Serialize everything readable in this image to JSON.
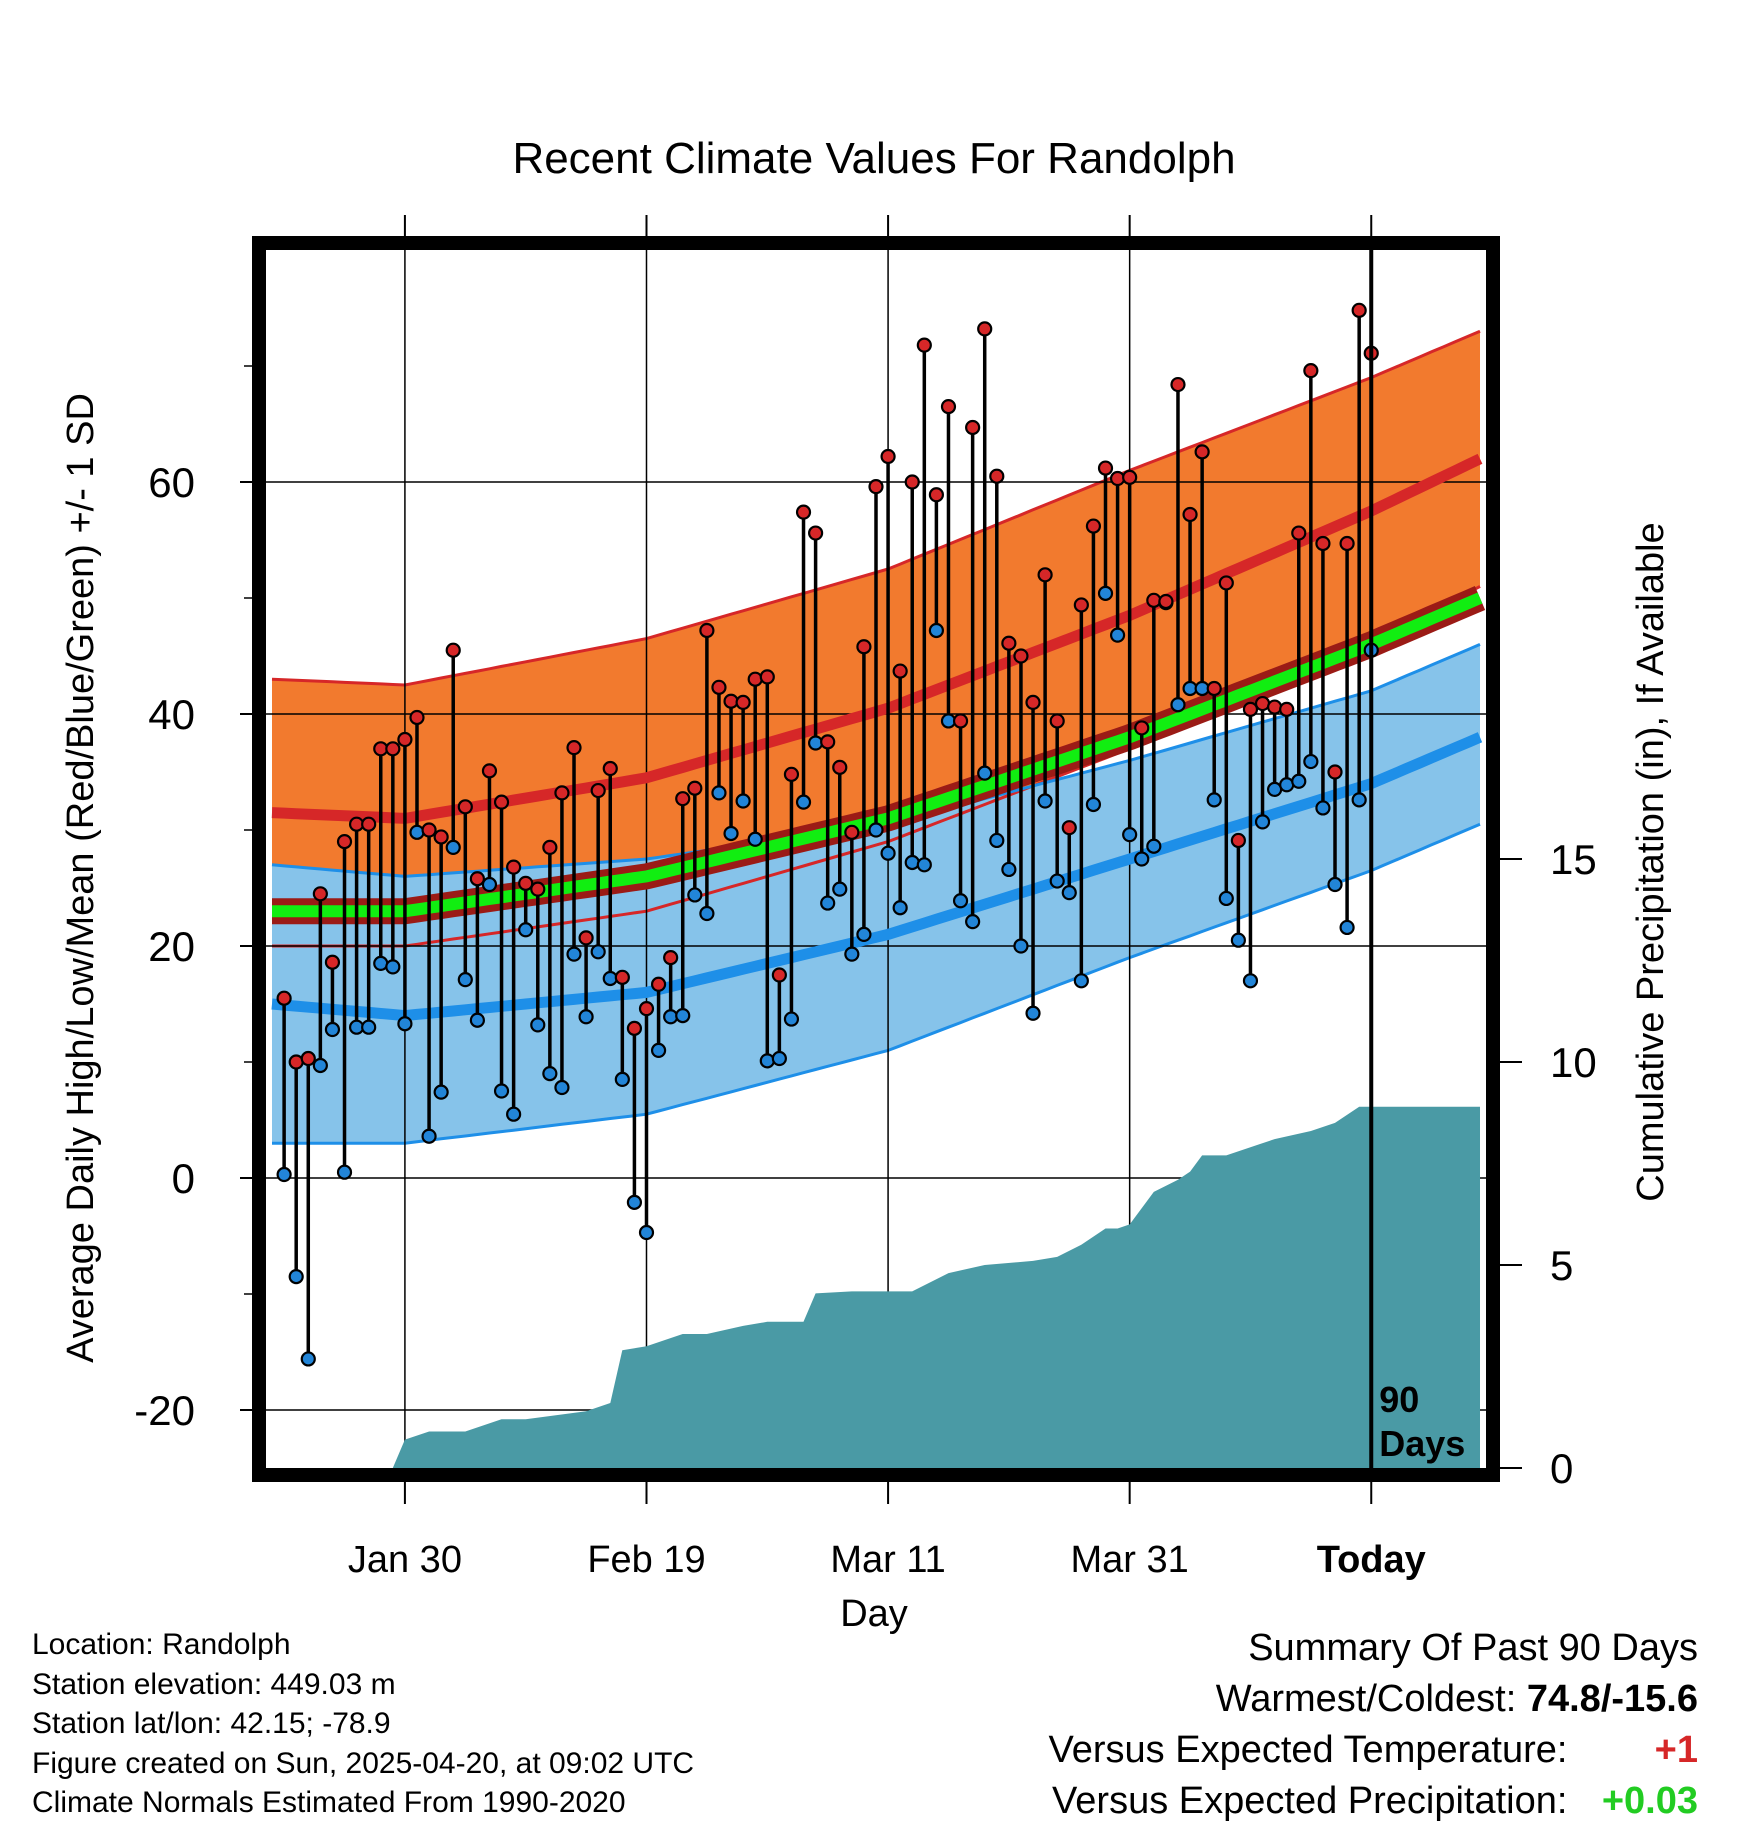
{
  "chart_data": {
    "type": "line",
    "title": "Recent Climate Values For Randolph",
    "xlabel": "Day",
    "ylabel": "Average Daily High/Low/Mean (Red/Blue/Green) +/- 1 SD",
    "y2label": "Cumulative Precipitation (in), If Available",
    "x_ticks": [
      "Jan 30",
      "Feb 19",
      "Mar 11",
      "Mar 31",
      "Today"
    ],
    "x_tick_days": [
      -80,
      -60,
      -40,
      -20,
      0
    ],
    "xlim_days": [
      -91.5,
      9.5
    ],
    "ylim": [
      -25,
      80
    ],
    "y_ticks": [
      -20,
      0,
      20,
      40,
      60
    ],
    "y2lim": [
      0,
      30
    ],
    "y2_ticks": [
      0,
      5,
      10,
      15
    ],
    "grid": true,
    "today_annotation": "90\nDays",
    "normals": {
      "day": [
        -91,
        -80,
        -60,
        -40,
        -20,
        0,
        9
      ],
      "high_mean": [
        31.5,
        31.0,
        34.5,
        40.5,
        48.5,
        57.5,
        62.0
      ],
      "high_upper": [
        43.0,
        42.5,
        46.5,
        52.5,
        61.0,
        69.0,
        73.0
      ],
      "high_lower": [
        20.0,
        20.0,
        23.0,
        29.0,
        37.0,
        46.0,
        51.0
      ],
      "low_mean": [
        15.0,
        14.0,
        16.0,
        21.0,
        27.5,
        34.0,
        38.0
      ],
      "low_upper": [
        27.0,
        26.0,
        27.5,
        30.5,
        36.0,
        42.0,
        46.0
      ],
      "low_lower": [
        3.0,
        3.0,
        5.5,
        11.0,
        19.0,
        26.5,
        30.5
      ],
      "mean": [
        23.0,
        23.0,
        26.0,
        31.0,
        38.0,
        46.0,
        50.0
      ]
    },
    "series": [
      {
        "name": "High",
        "values": [
          15.5,
          10.0,
          10.3,
          24.5,
          18.6,
          29.0,
          30.5,
          30.5,
          37.0,
          37.0,
          37.8,
          39.7,
          30.0,
          29.4,
          45.5,
          32.0,
          25.8,
          35.1,
          32.4,
          26.8,
          25.4,
          24.9,
          28.5,
          33.2,
          37.1,
          20.7,
          33.4,
          35.3,
          17.3,
          12.9,
          14.6,
          16.7,
          19.0,
          32.7,
          33.6,
          47.2,
          42.3,
          41.1,
          41.0,
          43.0,
          43.2,
          17.5,
          34.8,
          57.4,
          55.6,
          37.6,
          35.4,
          29.8,
          45.8,
          59.6,
          62.2,
          43.7,
          60.0,
          71.8,
          58.9,
          66.5,
          39.4,
          64.7,
          73.2,
          60.5,
          46.1,
          45.0,
          41.0,
          52.0,
          39.4,
          30.2,
          49.4,
          56.2,
          61.2,
          60.3,
          60.4,
          38.8,
          49.8,
          49.7,
          68.4,
          57.2,
          62.6,
          42.2,
          51.3,
          29.1,
          40.4,
          40.9,
          40.6,
          40.4,
          55.6,
          69.6,
          54.7,
          35.0,
          54.7,
          74.8,
          71.1
        ],
        "color": "#d62728"
      },
      {
        "name": "Low",
        "values": [
          0.3,
          -8.5,
          -15.6,
          9.7,
          12.8,
          0.5,
          13.0,
          13.0,
          18.5,
          18.2,
          13.3,
          29.8,
          3.6,
          7.4,
          28.5,
          17.1,
          13.6,
          25.3,
          7.5,
          5.5,
          21.4,
          13.2,
          9.0,
          7.8,
          19.3,
          13.9,
          19.5,
          17.2,
          8.5,
          -2.1,
          -4.7,
          11.0,
          13.9,
          14.0,
          24.4,
          22.8,
          33.2,
          29.7,
          32.5,
          29.2,
          10.1,
          10.3,
          13.7,
          32.4,
          37.5,
          23.7,
          24.9,
          19.3,
          21.0,
          30.0,
          28.0,
          23.3,
          27.2,
          27.0,
          47.2,
          39.4,
          23.9,
          22.1,
          34.9,
          29.1,
          26.6,
          20.0,
          14.2,
          32.5,
          25.6,
          24.6,
          17.0,
          32.2,
          50.4,
          46.8,
          29.6,
          27.5,
          28.6,
          49.6,
          40.8,
          42.2,
          42.2,
          32.6,
          24.1,
          20.5,
          17.0,
          30.7,
          33.5,
          33.9,
          34.2,
          35.9,
          31.9,
          25.3,
          21.6,
          32.6,
          45.5
        ],
        "color": "#1f77d4"
      }
    ],
    "precip_cumulative": {
      "day": [
        -91,
        -81,
        -80,
        -78,
        -75,
        -72,
        -70,
        -65,
        -63,
        -62,
        -60,
        -57,
        -55,
        -52,
        -50,
        -47,
        -46,
        -43,
        -38,
        -35,
        -32,
        -28,
        -26,
        -24,
        -22,
        -21,
        -20,
        -18,
        -16,
        -15,
        -14,
        -12,
        -8,
        -5,
        -3,
        -1,
        9
      ],
      "values": [
        0,
        0,
        0.7,
        0.9,
        0.9,
        1.2,
        1.2,
        1.4,
        1.6,
        2.9,
        3.0,
        3.3,
        3.3,
        3.5,
        3.6,
        3.6,
        4.3,
        4.35,
        4.35,
        4.8,
        5.0,
        5.1,
        5.2,
        5.5,
        5.9,
        5.9,
        6.0,
        6.8,
        7.1,
        7.3,
        7.7,
        7.7,
        8.1,
        8.3,
        8.5,
        8.9,
        8.9
      ]
    }
  },
  "info": {
    "location": "Location: Randolph",
    "elevation": "Station elevation: 449.03 m",
    "latlon": "Station lat/lon: 42.15; -78.9",
    "created": "Figure created on Sun, 2025-04-20, at 09:02 UTC",
    "normals": "Climate Normals Estimated From 1990-2020"
  },
  "summary": {
    "heading": "Summary Of Past 90 Days",
    "warmest_coldest_label": "Warmest/Coldest: ",
    "warmest_coldest_value": "74.8/-15.6",
    "temp_label": "Versus Expected Temperature: ",
    "temp_value": "+1",
    "precip_label": "Versus Expected Precipitation: ",
    "precip_value": "+0.03"
  },
  "colors": {
    "high_band": "#f27a2e",
    "high_line": "#d62728",
    "low_band": "#86c3ea",
    "low_line": "#1e8fe8",
    "mean_line": "#11ee11",
    "mean_dark": "#9b1b16",
    "precip_fill": "#4a9aa5",
    "high_marker": "#d62728",
    "low_marker": "#2285d8"
  }
}
